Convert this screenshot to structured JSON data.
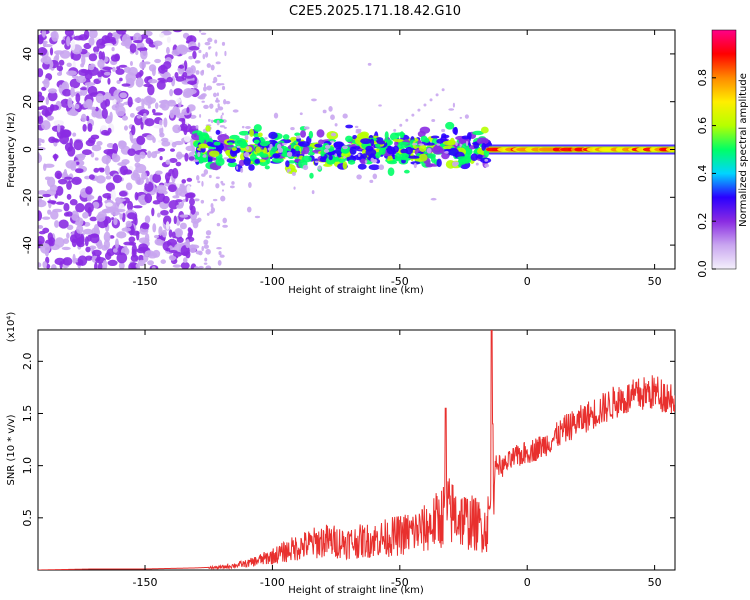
{
  "title": "C2E5.2025.171.18.42.G10",
  "chart_data": [
    {
      "type": "heatmap",
      "xlabel": "Height of straight line (km)",
      "ylabel": "Frequency (Hz)",
      "xlim": [
        -192,
        58
      ],
      "ylim": [
        -50,
        50
      ],
      "xticks": [
        -150,
        -100,
        -50,
        0,
        50
      ],
      "yticks": [
        -40,
        -20,
        0,
        20,
        40
      ],
      "colorbar": {
        "label": "Normalized spectral amplitude",
        "range": [
          0,
          1
        ],
        "ticks": [
          0.0,
          0.2,
          0.4,
          0.6,
          0.8
        ],
        "tick_labels": [
          "0.0",
          "0.2",
          "0.4",
          "0.6",
          "0.8"
        ],
        "colors": [
          "#f4f0fb",
          "#c9a6f0",
          "#8a2be2",
          "#2a00ff",
          "#00d5ff",
          "#00ff66",
          "#b6ff00",
          "#ffee00",
          "#ff8a00",
          "#ff0000",
          "#ff0088"
        ]
      },
      "features": [
        {
          "name": "diffuse noise",
          "x_range": [
            -192,
            -130
          ],
          "y_range": [
            -50,
            50
          ],
          "amplitude": 0.15
        },
        {
          "name": "band",
          "x_range": [
            -130,
            -15
          ],
          "center_hz": 0,
          "amplitude": 0.4
        },
        {
          "name": "tone",
          "x_range": [
            -15,
            58
          ],
          "center_hz": 0,
          "amplitude": 0.9
        },
        {
          "name": "side streak",
          "from": [
            -52,
            8
          ],
          "to": [
            -33,
            25
          ]
        }
      ]
    },
    {
      "type": "line",
      "xlabel": "Height of straight line (km)",
      "ylabel": "SNR (10 * v/v)",
      "y_multiplier": "(x10⁴)",
      "xlim": [
        -192,
        58
      ],
      "ylim": [
        0,
        2.3
      ],
      "xticks": [
        -150,
        -100,
        -50,
        0,
        50
      ],
      "yticks": [
        0.5,
        1.0,
        1.5,
        2.0
      ],
      "ytick_labels": [
        "0.5",
        "1.0",
        "1.5",
        "2.0"
      ],
      "color": "#e8302e",
      "series": [
        {
          "x": [
            -192,
            -170,
            -150,
            -130,
            -120,
            -110,
            -100,
            -90,
            -80,
            -70,
            -60,
            -50,
            -40,
            -35,
            -31,
            -25,
            -20,
            -16,
            -13,
            -12,
            -10,
            -5,
            0,
            5,
            10,
            15,
            20,
            25,
            30,
            35,
            40,
            45,
            50,
            55,
            58
          ],
          "y": [
            0.0,
            0.01,
            0.01,
            0.02,
            0.03,
            0.07,
            0.15,
            0.25,
            0.32,
            0.3,
            0.33,
            0.38,
            0.45,
            0.55,
            0.65,
            0.55,
            0.5,
            0.45,
            0.9,
            1.05,
            1.0,
            1.1,
            1.15,
            1.2,
            1.28,
            1.38,
            1.45,
            1.52,
            1.58,
            1.65,
            1.68,
            1.72,
            1.74,
            1.7,
            1.68
          ],
          "peaks": [
            {
              "x": -32,
              "y": 1.55
            },
            {
              "x": -14,
              "y": 2.3
            },
            {
              "x": -13.5,
              "y": 1.4
            }
          ]
        }
      ]
    }
  ]
}
